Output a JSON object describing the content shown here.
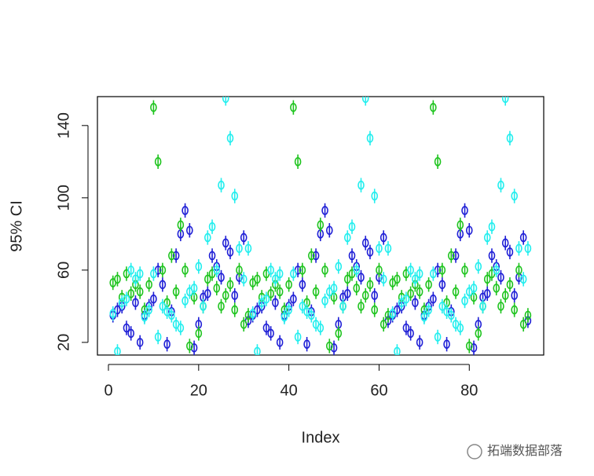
{
  "chart_data": {
    "type": "scatter",
    "xlabel": "Index",
    "ylabel": "95% CI",
    "xlim": [
      -2.44,
      96.5
    ],
    "ylim": [
      13,
      156
    ],
    "xticks": [
      0,
      20,
      40,
      60,
      80
    ],
    "yticks": [
      20,
      60,
      100,
      140
    ],
    "error": 4,
    "x": [
      1,
      2,
      3,
      4,
      5,
      6,
      7,
      8,
      9,
      10,
      11,
      12,
      13,
      14,
      15,
      16,
      17,
      18,
      19,
      20,
      21,
      22,
      23,
      24,
      25,
      26,
      27,
      28,
      29,
      30,
      31,
      32,
      33,
      34,
      35,
      36,
      37,
      38,
      39,
      40,
      41,
      42,
      43,
      44,
      45,
      46,
      47,
      48,
      49,
      50,
      51,
      52,
      53,
      54,
      55,
      56,
      57,
      58,
      59,
      60,
      61,
      62,
      63,
      64,
      65,
      66,
      67,
      68,
      69,
      70,
      71,
      72,
      73,
      74,
      75,
      76,
      77,
      78,
      79,
      80,
      81,
      82,
      83,
      84,
      85,
      86,
      87,
      88,
      89,
      90,
      91,
      92,
      93
    ],
    "series": [
      {
        "color": "#1f1fd6",
        "values": [
          35,
          38,
          40,
          28,
          25,
          42,
          20,
          35,
          40,
          44,
          60,
          52,
          19,
          37,
          68,
          80,
          93,
          82,
          17,
          30,
          45,
          47,
          68,
          62,
          56,
          75,
          70,
          46,
          56,
          78,
          32,
          35,
          38,
          40,
          28,
          25,
          42,
          20,
          35,
          40,
          44,
          60,
          52,
          19,
          37,
          68,
          80,
          93,
          82,
          17,
          30,
          45,
          47,
          68,
          62,
          56,
          75,
          70,
          46,
          56,
          78,
          32,
          35,
          38,
          40,
          28,
          25,
          42,
          20,
          35,
          40,
          44,
          60,
          52,
          19,
          37,
          68,
          80,
          93,
          82,
          17,
          30,
          45,
          47,
          68,
          62,
          56,
          75,
          70,
          46,
          56,
          78,
          32
        ]
      },
      {
        "color": "#1ec41e",
        "values": [
          53,
          55,
          45,
          58,
          47,
          52,
          48,
          38,
          52,
          150,
          120,
          60,
          42,
          68,
          48,
          85,
          60,
          18,
          45,
          25,
          40,
          55,
          58,
          50,
          40,
          46,
          52,
          38,
          60,
          30,
          35,
          53,
          55,
          45,
          58,
          47,
          52,
          48,
          38,
          52,
          150,
          120,
          60,
          42,
          68,
          48,
          85,
          60,
          18,
          45,
          25,
          40,
          55,
          58,
          50,
          40,
          46,
          52,
          38,
          60,
          30,
          35,
          53,
          55,
          45,
          58,
          47,
          52,
          48,
          38,
          52,
          150,
          120,
          60,
          42,
          68,
          48,
          85,
          60,
          18,
          45,
          25,
          40,
          55,
          58,
          50,
          40,
          46,
          52,
          38,
          60,
          30,
          35
        ]
      },
      {
        "color": "#22eeee",
        "values": [
          36,
          15,
          42,
          44,
          60,
          55,
          58,
          34,
          38,
          58,
          23,
          40,
          37,
          35,
          30,
          28,
          43,
          48,
          50,
          62,
          40,
          78,
          84,
          60,
          107,
          155,
          133,
          101,
          72,
          55,
          72,
          36,
          15,
          42,
          44,
          60,
          55,
          58,
          34,
          38,
          58,
          23,
          40,
          37,
          35,
          30,
          28,
          43,
          48,
          50,
          62,
          40,
          78,
          84,
          60,
          107,
          155,
          133,
          101,
          72,
          55,
          72,
          36,
          15,
          42,
          44,
          60,
          55,
          58,
          34,
          38,
          58,
          23,
          40,
          37,
          35,
          30,
          28,
          43,
          48,
          50,
          62,
          40,
          78,
          84,
          60,
          107,
          155,
          133,
          101,
          72,
          55,
          72
        ]
      }
    ]
  },
  "watermark": "拓端数据部落"
}
